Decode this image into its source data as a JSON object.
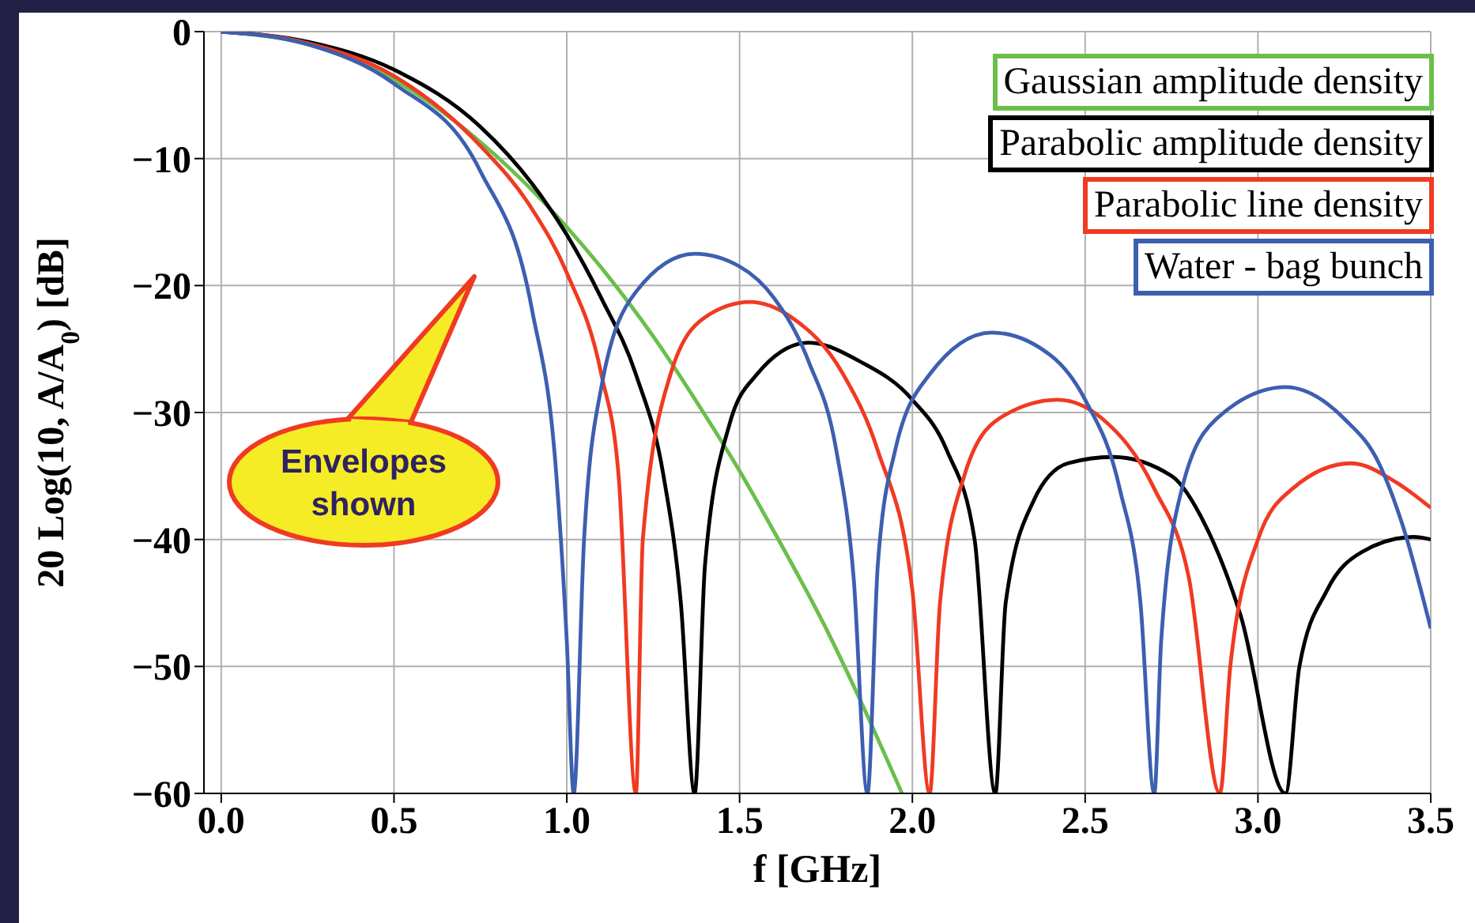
{
  "chart_data": {
    "type": "line",
    "xlabel": "f [GHz]",
    "ylabel": "20 Log(10, A/A$_{0}$) [dB]",
    "annotations": [
      "Envelopes shown"
    ],
    "xlim": [
      -0.05,
      3.5
    ],
    "ylim": [
      -60,
      0
    ],
    "xticks": [
      {
        "value": 0,
        "label": "0.0"
      },
      {
        "value": 0.5,
        "label": "0.5"
      },
      {
        "value": 1,
        "label": "1.0"
      },
      {
        "value": 1.5,
        "label": "1.5"
      },
      {
        "value": 2,
        "label": "2.0"
      },
      {
        "value": 2.5,
        "label": "2.5"
      },
      {
        "value": 3,
        "label": "3.0"
      },
      {
        "value": 3.5,
        "label": "3.5"
      }
    ],
    "yticks": [
      0,
      -10,
      -20,
      -30,
      -40,
      -50,
      -60
    ],
    "grid": true,
    "legend": "top right",
    "marker": "none",
    "line_style": "solid",
    "series": [
      {
        "name": "Gaussian amplitude density",
        "color": "#6abf4b",
        "x": [
          0,
          0.25,
          0.5,
          0.75,
          1,
          1.1,
          1.25,
          1.4,
          1.5,
          1.6,
          1.75,
          1.85,
          1.97
        ],
        "values": [
          0,
          -1,
          -3.8,
          -8.7,
          -15.4,
          -18.6,
          -24,
          -30.2,
          -34.6,
          -39.4,
          -47,
          -52.7,
          -60
        ]
      },
      {
        "name": "Parabolic amplitude density",
        "color": "#000000",
        "x": [
          0,
          0.25,
          0.5,
          0.75,
          0.9,
          1,
          1.1,
          1.2,
          1.28,
          1.33,
          1.37,
          1.4,
          1.47,
          1.55,
          1.7,
          1.85,
          2,
          2.1,
          2.18,
          2.24,
          2.27,
          2.35,
          2.45,
          2.58,
          2.75,
          2.85,
          2.95,
          3.08,
          3.12,
          3.2,
          3.3,
          3.45,
          3.5
        ],
        "values": [
          0,
          -0.8,
          -3,
          -7.5,
          -12,
          -16,
          -21,
          -27,
          -35,
          -45,
          -60,
          -42,
          -31,
          -27,
          -24.5,
          -26,
          -29,
          -33,
          -40,
          -60,
          -45,
          -37,
          -34,
          -33.5,
          -35,
          -39,
          -46,
          -60,
          -50,
          -44,
          -41,
          -39.8,
          -40
        ]
      },
      {
        "name": "Parabolic line density",
        "color": "#f03a22",
        "x": [
          0,
          0.25,
          0.5,
          0.75,
          0.9,
          1,
          1.1,
          1.15,
          1.2,
          1.22,
          1.3,
          1.4,
          1.53,
          1.65,
          1.8,
          1.9,
          2,
          2.05,
          2.08,
          2.15,
          2.25,
          2.42,
          2.55,
          2.7,
          2.8,
          2.89,
          2.92,
          3,
          3.1,
          3.27,
          3.4,
          3.5
        ],
        "values": [
          0,
          -0.9,
          -3.5,
          -9,
          -14,
          -19,
          -27,
          -35,
          -60,
          -40,
          -27,
          -22.5,
          -21.3,
          -22.5,
          -27,
          -33,
          -44,
          -60,
          -45,
          -35,
          -30.5,
          -29,
          -30.5,
          -36,
          -43,
          -60,
          -50,
          -40,
          -36,
          -34,
          -35.5,
          -37.5
        ]
      },
      {
        "name": "Water - bag bunch",
        "color": "#3d5fb0",
        "x": [
          0,
          0.25,
          0.5,
          0.75,
          0.9,
          0.97,
          1,
          1.02,
          1.05,
          1.1,
          1.2,
          1.37,
          1.5,
          1.6,
          1.7,
          1.78,
          1.83,
          1.87,
          1.9,
          1.95,
          2.05,
          2.23,
          2.4,
          2.5,
          2.6,
          2.66,
          2.7,
          2.72,
          2.78,
          2.88,
          3.08,
          3.25,
          3.35,
          3.42,
          3.5
        ],
        "values": [
          0,
          -1,
          -4.1,
          -11,
          -22,
          -35,
          -48,
          -60,
          -40,
          -28,
          -20.5,
          -17.5,
          -18.5,
          -21,
          -26,
          -33,
          -43,
          -60,
          -42,
          -33,
          -27,
          -23.7,
          -25.5,
          -29,
          -36,
          -45,
          -60,
          -48,
          -36,
          -30.5,
          -28,
          -30.5,
          -34,
          -39,
          -47
        ]
      }
    ]
  }
}
